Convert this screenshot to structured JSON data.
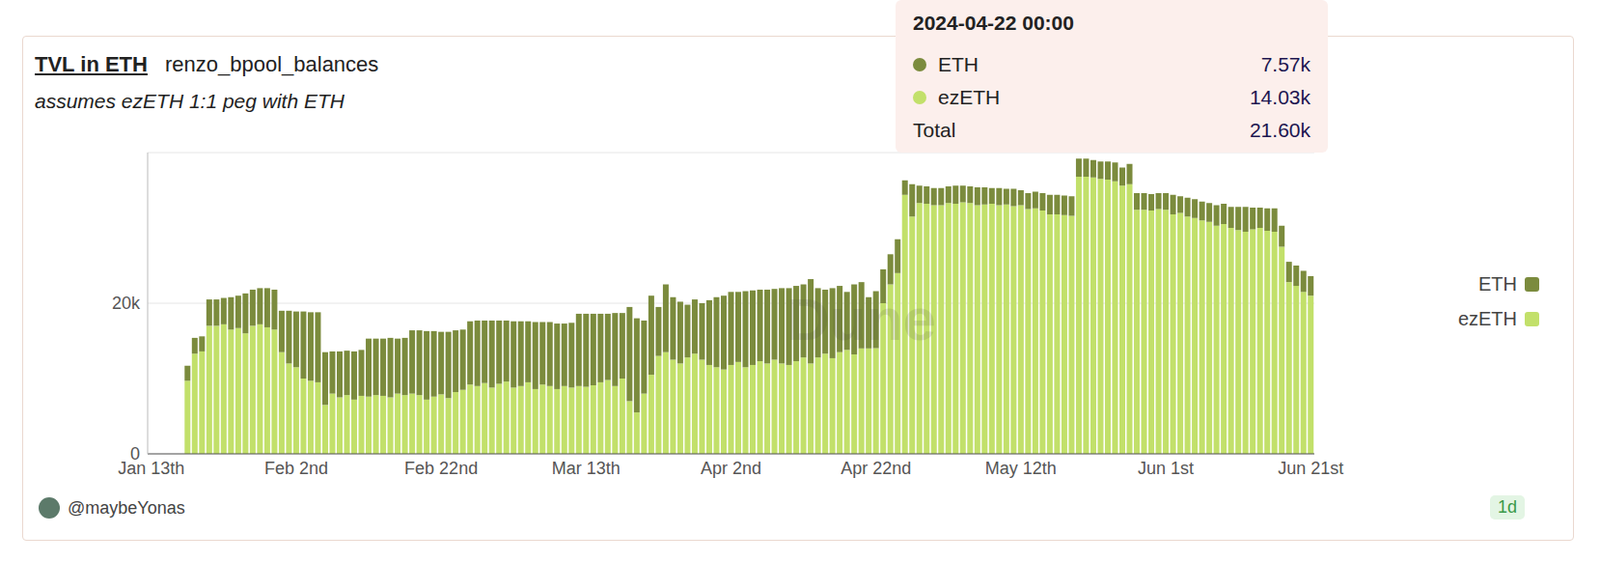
{
  "chart_data": {
    "type": "bar",
    "title": "TVL in ETH",
    "query_name": "renzo_bpool_balances",
    "subtitle": "assumes ezETH 1:1 peg with ETH",
    "stacked": true,
    "grid": true,
    "legend": "right",
    "categories": [
      "Jan 13th",
      null,
      null,
      null,
      null,
      null,
      null,
      null,
      null,
      null,
      null,
      null,
      null,
      null,
      null,
      null,
      null,
      null,
      null,
      null,
      "Feb 2nd",
      null,
      null,
      null,
      null,
      null,
      null,
      null,
      null,
      null,
      null,
      null,
      null,
      null,
      null,
      null,
      null,
      null,
      null,
      null,
      "Feb 22nd",
      null,
      null,
      null,
      null,
      null,
      null,
      null,
      null,
      null,
      null,
      null,
      null,
      null,
      null,
      null,
      null,
      null,
      null,
      null,
      "Mar 13th",
      null,
      null,
      null,
      null,
      null,
      null,
      null,
      null,
      null,
      null,
      null,
      null,
      null,
      null,
      null,
      null,
      null,
      null,
      null,
      "Apr 2nd",
      null,
      null,
      null,
      null,
      null,
      null,
      null,
      null,
      null,
      null,
      null,
      null,
      null,
      null,
      null,
      null,
      null,
      null,
      null,
      "Apr 22nd",
      null,
      null,
      null,
      null,
      null,
      null,
      null,
      null,
      null,
      null,
      null,
      null,
      null,
      null,
      null,
      null,
      null,
      null,
      null,
      "May 12th",
      null,
      null,
      null,
      null,
      null,
      null,
      null,
      null,
      null,
      null,
      null,
      null,
      null,
      null,
      null,
      null,
      null,
      null,
      null,
      "Jun 1st",
      null,
      null,
      null,
      null,
      null,
      null,
      null,
      null,
      null,
      null,
      null,
      null,
      null,
      null,
      null,
      null,
      null,
      null,
      null,
      "Jun 21st"
    ],
    "series": [
      {
        "name": "ETH",
        "color": "#7b8b3d",
        "values": [
          null,
          null,
          null,
          null,
          null,
          2000,
          2100,
          2000,
          3500,
          3500,
          3500,
          4300,
          4300,
          5300,
          4800,
          4800,
          5200,
          5300,
          5500,
          7000,
          7400,
          8900,
          9100,
          9300,
          7000,
          5600,
          6100,
          5900,
          6400,
          6100,
          7700,
          7500,
          7600,
          7900,
          7300,
          7600,
          8400,
          8600,
          9100,
          8700,
          8300,
          8800,
          8200,
          8000,
          8400,
          8700,
          8300,
          8900,
          8400,
          8100,
          8800,
          8600,
          8100,
          8900,
          8300,
          8500,
          8700,
          8300,
          8600,
          9600,
          9700,
          9500,
          9100,
          8800,
          9700,
          8700,
          12500,
          12500,
          9700,
          10500,
          6500,
          9000,
          8300,
          8200,
          7000,
          7200,
          7500,
          8600,
          9300,
          9800,
          9700,
          9300,
          10100,
          9900,
          9500,
          9800,
          9400,
          10000,
          10200,
          10000,
          9700,
          11200,
          9200,
          8500,
          9300,
          8800,
          7700,
          9300,
          8800,
          6800,
          7570,
          4500,
          4000,
          4500,
          1900,
          4300,
          2300,
          2300,
          2300,
          2300,
          2200,
          2400,
          2200,
          2200,
          2400,
          2300,
          2100,
          2300,
          2100,
          2300,
          2000,
          2100,
          2200,
          2300,
          2600,
          2600,
          2600,
          2600,
          2400,
          2400,
          2300,
          2300,
          2400,
          2500,
          2400,
          2700,
          2200,
          2200,
          2200,
          2100,
          2200,
          2600,
          2200,
          2500,
          2500,
          2500,
          2500,
          2700,
          2700,
          2800,
          3100,
          3300,
          2900,
          2700,
          3000,
          3100,
          2800,
          2700,
          2700,
          2800,
          2600
        ]
      },
      {
        "name": "ezETH",
        "color": "#c2e06a",
        "values": [
          null,
          null,
          null,
          null,
          null,
          9700,
          13300,
          13600,
          17000,
          17000,
          17200,
          16500,
          16700,
          16000,
          17000,
          17200,
          16800,
          16500,
          13500,
          12000,
          11500,
          10000,
          9700,
          9500,
          6500,
          8000,
          7500,
          7800,
          7200,
          7700,
          7600,
          7800,
          7700,
          7500,
          8000,
          7800,
          8000,
          7800,
          7200,
          7600,
          7900,
          7400,
          8200,
          8500,
          9200,
          9000,
          9400,
          8800,
          9300,
          9600,
          8800,
          9000,
          9500,
          8600,
          9200,
          9000,
          8600,
          9000,
          8800,
          9000,
          8900,
          9100,
          9500,
          9800,
          9000,
          10000,
          7000,
          5500,
          8000,
          10500,
          13000,
          13500,
          12500,
          12000,
          12800,
          13300,
          12500,
          11800,
          11500,
          11200,
          11800,
          12200,
          11500,
          11800,
          12300,
          12000,
          12500,
          12000,
          11800,
          12300,
          12800,
          12000,
          12800,
          13300,
          12700,
          13500,
          13800,
          13200,
          14000,
          14000,
          14030,
          20000,
          22500,
          24000,
          34400,
          31500,
          33300,
          33200,
          33000,
          33000,
          33300,
          33200,
          33400,
          33300,
          33000,
          33100,
          33200,
          33000,
          33100,
          32900,
          33000,
          32500,
          32600,
          32300,
          31800,
          31800,
          31700,
          31600,
          36800,
          36800,
          36700,
          36500,
          36400,
          36200,
          35600,
          35800,
          32400,
          32400,
          32300,
          32500,
          32400,
          31800,
          32000,
          31500,
          31300,
          31000,
          30800,
          30300,
          30500,
          30000,
          29700,
          29500,
          29800,
          30000,
          29600,
          29500,
          27500,
          22800,
          22300,
          21500,
          21000
        ]
      }
    ],
    "ylim": [
      0,
      40000
    ],
    "yticks": [
      0,
      {
        "value": 20000,
        "label": "20k"
      }
    ],
    "tooltip": {
      "title": "2024-04-22 00:00",
      "items": [
        {
          "name": "ETH",
          "label": "7.57k"
        },
        {
          "name": "ezETH",
          "label": "14.03k"
        },
        {
          "name": "Total",
          "label": "21.60k"
        }
      ]
    },
    "watermark": "Dune",
    "author": "@maybeYonas",
    "refresh": "1d"
  }
}
